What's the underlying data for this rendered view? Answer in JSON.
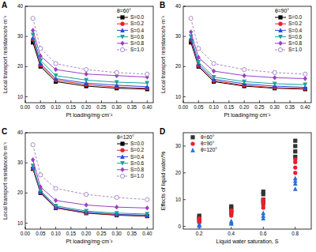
{
  "chart_data": [
    {
      "type": "line",
      "title": "A",
      "subtitle": "θ=60°",
      "x_label": "Pt loading/mg·cm⁻²",
      "y_label": "Local transport resistance/s·m⁻¹",
      "x": [
        0.025,
        0.05,
        0.1,
        0.2,
        0.3,
        0.4
      ],
      "series": [
        {
          "name": "S=0.0",
          "color": "#000000",
          "marker": "square",
          "line_style": "solid",
          "values": [
            28,
            20,
            15,
            13.5,
            12.8,
            12.5
          ]
        },
        {
          "name": "S=0.2",
          "color": "#e8202a",
          "marker": "circle",
          "line_style": "solid",
          "values": [
            29,
            20.5,
            15.5,
            14,
            13.2,
            12.8
          ]
        },
        {
          "name": "S=0.4",
          "color": "#2a4bd8",
          "marker": "triangle",
          "line_style": "solid",
          "values": [
            29.5,
            21,
            16,
            14.5,
            13.8,
            13.3
          ]
        },
        {
          "name": "S=0.6",
          "color": "#1aa39a",
          "marker": "triangle-down",
          "line_style": "solid",
          "values": [
            30.5,
            22,
            17,
            15.5,
            14.8,
            14.5
          ]
        },
        {
          "name": "S=0.8",
          "color": "#9b3fc4",
          "marker": "diamond",
          "line_style": "solid",
          "values": [
            32,
            23.5,
            19,
            17.5,
            17,
            16.5
          ]
        },
        {
          "name": "S=1.0",
          "color": "#a88cc8",
          "marker": "circle-open",
          "line_style": "dashed",
          "values": [
            36,
            26,
            21,
            19,
            18,
            17.5
          ]
        }
      ],
      "xlim": [
        0,
        0.42
      ],
      "xticks": [
        {
          "value": 0,
          "label": "0.00"
        },
        {
          "value": 0.05,
          "label": "0.05"
        },
        {
          "value": 0.1,
          "label": "0.10"
        },
        {
          "value": 0.15,
          "label": "0.15"
        },
        {
          "value": 0.2,
          "label": "0.20"
        },
        {
          "value": 0.25,
          "label": "0.25"
        },
        {
          "value": 0.3,
          "label": "0.30"
        },
        {
          "value": 0.35,
          "label": "0.35"
        },
        {
          "value": 0.4,
          "label": "0.40"
        }
      ],
      "ylim": [
        8,
        40
      ],
      "yticks": [
        10,
        20,
        30,
        40
      ],
      "grid": false,
      "legend": "upper right"
    },
    {
      "type": "line",
      "title": "B",
      "subtitle": "θ=90°",
      "x_label": "Pt loading/mg·cm⁻²",
      "y_label": "Local transport resistance/s·m⁻¹",
      "x": [
        0.025,
        0.05,
        0.1,
        0.2,
        0.3,
        0.4
      ],
      "series": [
        {
          "name": "S=0.0",
          "color": "#000000",
          "marker": "square",
          "line_style": "solid",
          "values": [
            28,
            20,
            15,
            13.5,
            12.8,
            12.5
          ]
        },
        {
          "name": "S=0.2",
          "color": "#e8202a",
          "marker": "circle",
          "line_style": "solid",
          "values": [
            28.8,
            20.3,
            15.3,
            13.8,
            13,
            12.7
          ]
        },
        {
          "name": "S=0.4",
          "color": "#2a4bd8",
          "marker": "triangle",
          "line_style": "solid",
          "values": [
            29.3,
            20.8,
            15.8,
            14.3,
            13.5,
            13.1
          ]
        },
        {
          "name": "S=0.6",
          "color": "#1aa39a",
          "marker": "triangle-down",
          "line_style": "solid",
          "values": [
            30,
            21.5,
            16.5,
            15,
            14.3,
            14
          ]
        },
        {
          "name": "S=0.8",
          "color": "#9b3fc4",
          "marker": "diamond",
          "line_style": "solid",
          "values": [
            31.5,
            23,
            18.5,
            17,
            16.3,
            16
          ]
        },
        {
          "name": "S=1.0",
          "color": "#a88cc8",
          "marker": "circle-open",
          "line_style": "dashed",
          "values": [
            36,
            26,
            21,
            19,
            18,
            17.5
          ]
        }
      ],
      "xlim": [
        0,
        0.42
      ],
      "xticks": [
        {
          "value": 0,
          "label": "0.00"
        },
        {
          "value": 0.05,
          "label": "0.05"
        },
        {
          "value": 0.1,
          "label": "0.10"
        },
        {
          "value": 0.15,
          "label": "0.15"
        },
        {
          "value": 0.2,
          "label": "0.20"
        },
        {
          "value": 0.25,
          "label": "0.25"
        },
        {
          "value": 0.3,
          "label": "0.30"
        },
        {
          "value": 0.35,
          "label": "0.35"
        },
        {
          "value": 0.4,
          "label": "0.40"
        }
      ],
      "ylim": [
        8,
        40
      ],
      "yticks": [
        10,
        20,
        30,
        40
      ],
      "grid": false,
      "legend": "upper right"
    },
    {
      "type": "line",
      "title": "C",
      "subtitle": "θ=120°",
      "x_label": "Pt loading/mg·cm⁻²",
      "y_label": "Local transport resistance/s·m⁻¹",
      "x": [
        0.025,
        0.05,
        0.1,
        0.2,
        0.3,
        0.4
      ],
      "series": [
        {
          "name": "S=0.0",
          "color": "#000000",
          "marker": "square",
          "line_style": "solid",
          "values": [
            28,
            20,
            15,
            13.3,
            12.6,
            12.3
          ]
        },
        {
          "name": "S=0.2",
          "color": "#e8202a",
          "marker": "circle",
          "line_style": "solid",
          "values": [
            28.2,
            20.2,
            15.1,
            13.4,
            12.7,
            12.4
          ]
        },
        {
          "name": "S=0.4",
          "color": "#2a4bd8",
          "marker": "triangle",
          "line_style": "solid",
          "values": [
            28.5,
            20.4,
            15.3,
            13.6,
            12.9,
            12.6
          ]
        },
        {
          "name": "S=0.6",
          "color": "#1aa39a",
          "marker": "triangle-down",
          "line_style": "solid",
          "values": [
            29,
            20.8,
            15.7,
            14,
            13.3,
            13
          ]
        },
        {
          "name": "S=0.8",
          "color": "#9b3fc4",
          "marker": "diamond",
          "line_style": "solid",
          "values": [
            31,
            22,
            17.5,
            16,
            15.3,
            15
          ]
        },
        {
          "name": "S=1.0",
          "color": "#a88cc8",
          "marker": "circle-open",
          "line_style": "dashed",
          "values": [
            36,
            26,
            21.5,
            19.5,
            18.5,
            17.8
          ]
        }
      ],
      "xlim": [
        0,
        0.42
      ],
      "xticks": [
        {
          "value": 0,
          "label": "0.00"
        },
        {
          "value": 0.05,
          "label": "0.05"
        },
        {
          "value": 0.1,
          "label": "0.10"
        },
        {
          "value": 0.15,
          "label": "0.15"
        },
        {
          "value": 0.2,
          "label": "0.20"
        },
        {
          "value": 0.25,
          "label": "0.25"
        },
        {
          "value": 0.3,
          "label": "0.30"
        },
        {
          "value": 0.35,
          "label": "0.35"
        },
        {
          "value": 0.4,
          "label": "0.40"
        }
      ],
      "ylim": [
        8,
        40
      ],
      "yticks": [
        10,
        20,
        30,
        40
      ],
      "grid": false,
      "legend": "upper right"
    },
    {
      "type": "scatter",
      "title": "D",
      "x_label": "Liquid water saturation, S",
      "y_label": "Effects of liquid water/%",
      "series": [
        {
          "name": "θ=60°",
          "color": "#333333",
          "marker": "square",
          "x": [
            0.2,
            0.2,
            0.2,
            0.2,
            0.4,
            0.4,
            0.4,
            0.4,
            0.6,
            0.6,
            0.6,
            0.6,
            0.8,
            0.8,
            0.8,
            0.8
          ],
          "values": [
            2,
            3,
            3.5,
            4,
            5,
            6,
            7,
            7.5,
            9,
            10,
            12,
            13,
            26,
            28,
            30,
            32
          ]
        },
        {
          "name": "θ=90°",
          "color": "#e8202a",
          "marker": "circle",
          "x": [
            0.2,
            0.2,
            0.2,
            0.2,
            0.4,
            0.4,
            0.4,
            0.4,
            0.6,
            0.6,
            0.6,
            0.6,
            0.8,
            0.8,
            0.8,
            0.8
          ],
          "values": [
            1.5,
            2,
            2.5,
            3,
            4,
            5,
            5.5,
            6,
            7,
            8,
            9,
            10,
            20,
            22,
            24,
            25
          ]
        },
        {
          "name": "θ=120°",
          "color": "#2a6fd8",
          "marker": "triangle",
          "x": [
            0.2,
            0.2,
            0.2,
            0.4,
            0.4,
            0.4,
            0.6,
            0.6,
            0.6,
            0.8,
            0.8,
            0.8,
            0.8
          ],
          "values": [
            0.2,
            0.5,
            0.8,
            1,
            1.5,
            2,
            3,
            4,
            5,
            14,
            16,
            17,
            18
          ]
        }
      ],
      "xlim": [
        0.1,
        0.9
      ],
      "xticks": [
        0.2,
        0.4,
        0.6,
        0.8
      ],
      "ylim": [
        -1,
        35
      ],
      "yticks": [
        0,
        10,
        20,
        30
      ],
      "grid": false,
      "legend": "upper left"
    }
  ]
}
